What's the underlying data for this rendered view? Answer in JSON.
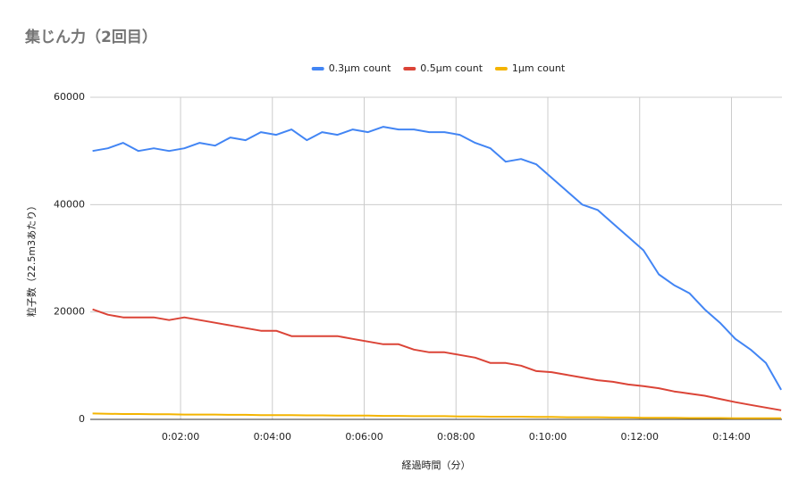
{
  "chart_data": {
    "type": "line",
    "title": "集じん力（2回目）",
    "x_label": "経過時間（分）",
    "y_label": "粒子数（22.5m3あたり）",
    "x": [
      5,
      25,
      45,
      65,
      85,
      105,
      125,
      145,
      165,
      185,
      205,
      225,
      245,
      265,
      285,
      305,
      325,
      345,
      365,
      385,
      405,
      425,
      445,
      465,
      485,
      505,
      525,
      545,
      565,
      585,
      605,
      625,
      645,
      665,
      685,
      705,
      725,
      745,
      765,
      785,
      805,
      825,
      845,
      865,
      885,
      905
    ],
    "series": [
      {
        "name": "0.3μm count",
        "color": "#4285f4",
        "values": [
          50000,
          50500,
          51500,
          50000,
          50500,
          50000,
          50500,
          51500,
          51000,
          52500,
          52000,
          53500,
          53000,
          54000,
          52000,
          53500,
          53000,
          54000,
          53500,
          54500,
          54000,
          54000,
          53500,
          53500,
          53000,
          51500,
          50500,
          48000,
          48500,
          47500,
          45000,
          42500,
          40000,
          39000,
          36500,
          34000,
          31500,
          27000,
          25000,
          23500,
          20500,
          18000,
          15000,
          13000,
          10500,
          5500
        ]
      },
      {
        "name": "0.5μm count",
        "color": "#db4437",
        "values": [
          20500,
          19500,
          19000,
          19000,
          19000,
          18500,
          19000,
          18500,
          18000,
          17500,
          17000,
          16500,
          16500,
          15500,
          15500,
          15500,
          15500,
          15000,
          14500,
          14000,
          14000,
          13000,
          12500,
          12500,
          12000,
          11500,
          10500,
          10500,
          10000,
          9000,
          8800,
          8300,
          7800,
          7300,
          7000,
          6500,
          6200,
          5800,
          5200,
          4800,
          4400,
          3800,
          3200,
          2700,
          2200,
          1700
        ]
      },
      {
        "name": "1μm count",
        "color": "#f4b400",
        "values": [
          1100,
          1050,
          1000,
          1000,
          950,
          950,
          900,
          900,
          900,
          850,
          850,
          800,
          800,
          800,
          750,
          750,
          700,
          700,
          700,
          650,
          650,
          600,
          600,
          600,
          550,
          550,
          500,
          500,
          500,
          450,
          450,
          400,
          400,
          400,
          350,
          350,
          300,
          300,
          300,
          250,
          250,
          250,
          200,
          200,
          200,
          200
        ]
      }
    ],
    "xlim": [
      2,
      906
    ],
    "xticks": [
      {
        "value": 120,
        "label": "0:02:00"
      },
      {
        "value": 240,
        "label": "0:04:00"
      },
      {
        "value": 360,
        "label": "0:06:00"
      },
      {
        "value": 480,
        "label": "0:08:00"
      },
      {
        "value": 600,
        "label": "0:10:00"
      },
      {
        "value": 720,
        "label": "0:12:00"
      },
      {
        "value": 840,
        "label": "0:14:00"
      }
    ],
    "ylim": [
      0,
      60000
    ],
    "yticks": [
      0,
      20000,
      40000,
      60000
    ],
    "grid": true,
    "legend": "top"
  }
}
